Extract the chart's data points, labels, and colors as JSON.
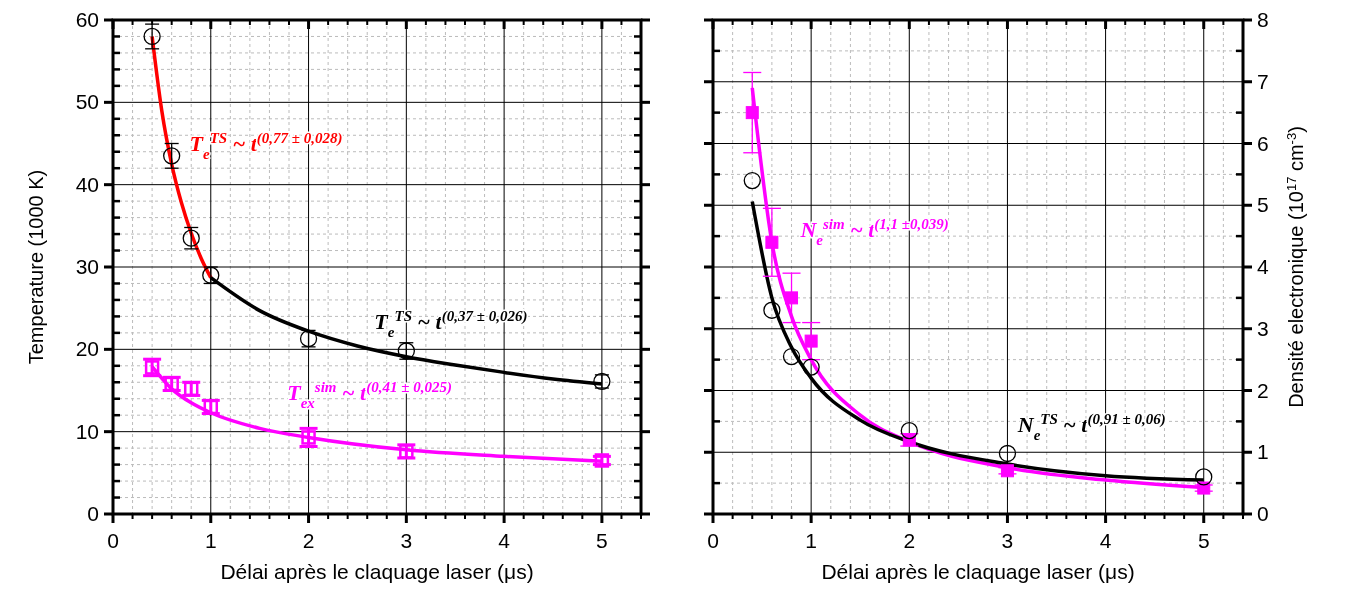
{
  "chart_data": [
    {
      "type": "scatter",
      "xlabel": "Délai après le claquage laser (μs)",
      "ylabel": "Temperature (1000 K)",
      "xlim": [
        0,
        5.4
      ],
      "xticks": [
        0,
        1,
        2,
        3,
        4,
        5
      ],
      "ylim": [
        0,
        60
      ],
      "yticks": [
        0,
        10,
        20,
        30,
        40,
        50,
        60
      ],
      "grid": true,
      "series": [
        {
          "color": "#000000",
          "marker": "circle",
          "x": [
            0.4,
            0.6,
            0.8,
            1,
            2,
            3,
            5
          ],
          "values": [
            58,
            43.5,
            33.5,
            29,
            21.3,
            19.8,
            16.1
          ],
          "errors": [
            1.5,
            1.5,
            1.3,
            1,
            1,
            1,
            0.8
          ]
        },
        {
          "type": "line",
          "color": "#ff0000",
          "marker": "none",
          "x": [
            0.4,
            0.5,
            0.6,
            0.7,
            0.8,
            0.9,
            1
          ],
          "values": [
            58,
            48.9,
            42.5,
            37.8,
            34.1,
            31.1,
            28.7
          ]
        },
        {
          "type": "line",
          "color": "#000000",
          "marker": "none",
          "x": [
            1,
            1.5,
            2,
            2.5,
            3,
            3.5,
            4,
            4.5,
            5
          ],
          "values": [
            28.7,
            24.7,
            22.2,
            20.4,
            19.1,
            18.1,
            17.2,
            16.4,
            15.8
          ]
        },
        {
          "color": "#ff00ff",
          "marker": "square",
          "x": [
            0.4,
            0.6,
            0.8,
            1,
            2,
            3,
            5
          ],
          "values": [
            17.8,
            15.8,
            15.2,
            13,
            9.3,
            7.6,
            6.5
          ],
          "errors": [
            1,
            0.8,
            0.8,
            0.8,
            1.1,
            0.8,
            0.5
          ]
        },
        {
          "type": "line",
          "color": "#ff00ff",
          "marker": "none",
          "x": [
            0.4,
            0.6,
            0.8,
            1,
            1.5,
            2,
            3,
            4,
            5
          ],
          "values": [
            17.9,
            15.2,
            13.5,
            12.3,
            10.4,
            9.3,
            7.8,
            7,
            6.4
          ]
        }
      ],
      "annotations": [
        "T$_{e}$$^{TS}$ ~ t$^{(0,77 ± 0,028)}$",
        "T$_{e}$$^{TS}$ ~ t$^{(0,37 ± 0,026)}$",
        "T$_{ex}$$^{sim}$ ~ t$^{(0,41 ±  0,025)}$"
      ]
    },
    {
      "type": "scatter",
      "xlabel": "Délai après le claquage laser (μs)",
      "y2label": "Densité electronique (10$^{17}$ cm$^{-3}$)",
      "xlim": [
        0,
        5.4
      ],
      "xticks": [
        0,
        1,
        2,
        3,
        4,
        5
      ],
      "y2lim": [
        0,
        8
      ],
      "y2ticks": [
        0,
        1,
        2,
        3,
        4,
        5,
        6,
        7,
        8
      ],
      "grid": true,
      "series": [
        {
          "axis": "y2",
          "color": "#ff00ff",
          "marker": "square",
          "x": [
            0.4,
            0.6,
            0.8,
            1,
            2,
            3,
            5
          ],
          "values": [
            6.5,
            4.4,
            3.5,
            2.8,
            1.2,
            0.7,
            0.42
          ],
          "errors": [
            0.65,
            0.55,
            0.4,
            0.3,
            0.1,
            0.05,
            0.05
          ]
        },
        {
          "type": "line",
          "axis": "y2",
          "color": "#ff00ff",
          "marker": "none",
          "x": [
            0.4,
            0.6,
            0.8,
            1,
            1.5,
            2,
            3,
            4,
            5
          ],
          "values": [
            6.9,
            4.4,
            3.2,
            2.5,
            1.6,
            1.17,
            0.75,
            0.55,
            0.43
          ]
        },
        {
          "axis": "y2",
          "color": "#000000",
          "marker": "circle",
          "x": [
            0.4,
            0.6,
            0.8,
            1,
            2,
            3,
            5
          ],
          "values": [
            5.4,
            3.3,
            2.55,
            2.38,
            1.35,
            0.98,
            0.6
          ]
        },
        {
          "type": "line",
          "axis": "y2",
          "color": "#000000",
          "marker": "none",
          "x": [
            0.4,
            0.6,
            0.8,
            1,
            1.5,
            2,
            3,
            4,
            5
          ],
          "values": [
            5.06,
            3.5,
            2.7,
            2.2,
            1.52,
            1.17,
            0.81,
            0.62,
            0.55
          ]
        }
      ],
      "annotations": [
        "N$_{e}$$^{sim}$ ~ t$^{(1,1 ±0,039)}$",
        "N$_{e}$$^{TS}$ ~ t$^{(0,91 ± 0,06)}$"
      ]
    }
  ]
}
